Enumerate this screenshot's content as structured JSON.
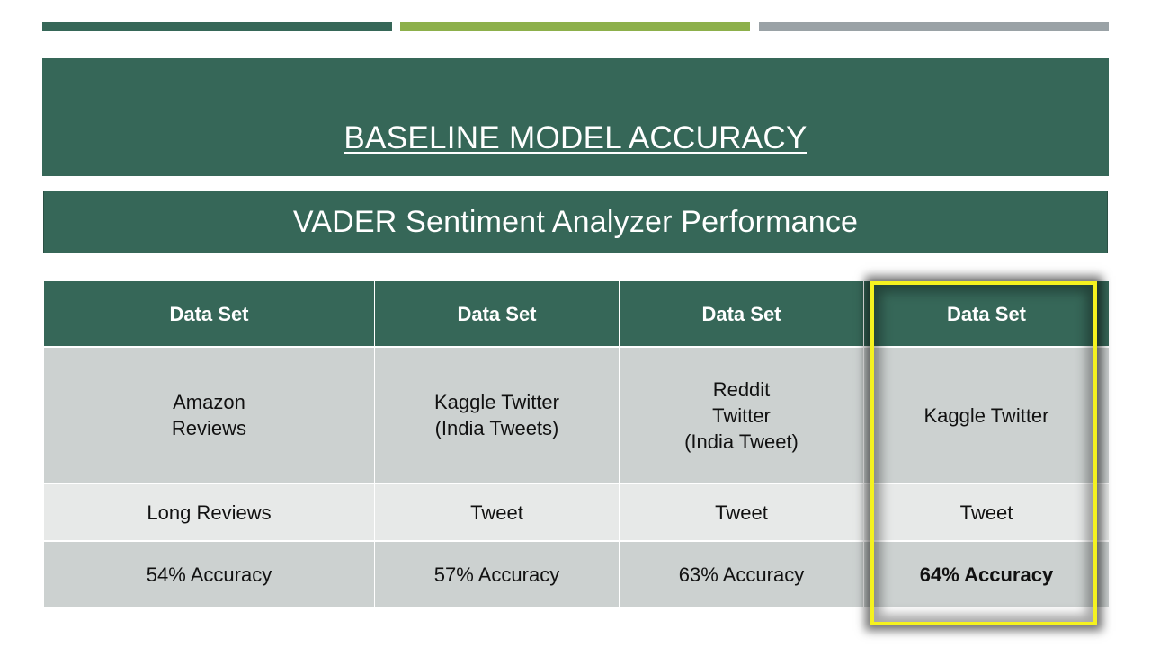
{
  "slide": {
    "title": "BASELINE MODEL ACCURACY",
    "subtitle": "VADER Sentiment Analyzer Performance",
    "colors": {
      "primary": "#366758",
      "accent_green": "#8db04b",
      "accent_gray": "#9aa2a6",
      "highlight": "#f5f21f"
    }
  },
  "table": {
    "headers": [
      "Data Set",
      "Data Set",
      "Data Set",
      "Data Set"
    ],
    "datasets": [
      "Amazon\nReviews",
      "Kaggle Twitter\n(India Tweets)",
      "Reddit\nTwitter\n(India Tweet)",
      "Kaggle Twitter"
    ],
    "types": [
      "Long Reviews",
      "Tweet",
      "Tweet",
      "Tweet"
    ],
    "accuracy": [
      "54% Accuracy",
      "57% Accuracy",
      "63% Accuracy",
      "64% Accuracy"
    ],
    "highlighted_column": 3
  }
}
